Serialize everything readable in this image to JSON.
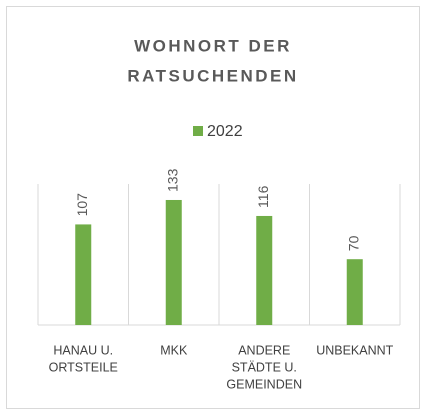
{
  "chart_data": {
    "type": "bar",
    "title": [
      "WOHNORT DER",
      "RATSUCHENDEN"
    ],
    "categories": [
      [
        "HANAU U.",
        "ORTSTEILE"
      ],
      [
        "MKK"
      ],
      [
        "ANDERE",
        "STÄDTE U.",
        "GEMEINDEN"
      ],
      [
        "UNBEKANNT"
      ]
    ],
    "series": [
      {
        "name": "2022",
        "color": "#70ad47",
        "values": [
          107,
          133,
          116,
          70
        ]
      }
    ],
    "ylim": [
      0,
      150
    ],
    "legend": "top"
  }
}
